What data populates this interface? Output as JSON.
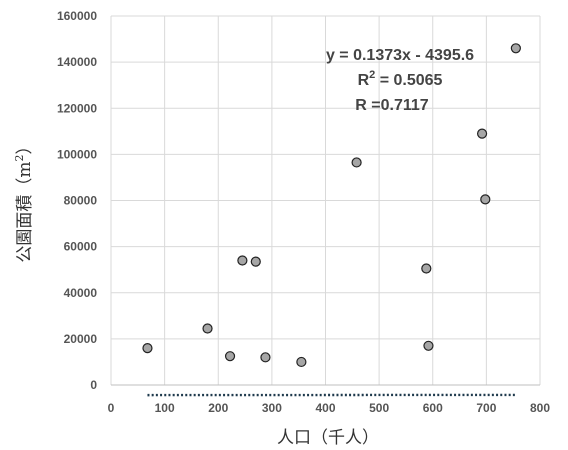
{
  "chart_data": {
    "type": "scatter",
    "xlabel": "人口（千人）",
    "ylabel_main": "公園面積（m",
    "ylabel_sup": "2",
    "ylabel_close": "）",
    "xlim": [
      0,
      800
    ],
    "ylim": [
      0,
      160000
    ],
    "x_ticks": [
      "0",
      "100",
      "200",
      "300",
      "400",
      "500",
      "600",
      "700",
      "800"
    ],
    "y_ticks": [
      "0",
      "20000",
      "40000",
      "60000",
      "80000",
      "100000",
      "120000",
      "140000",
      "160000"
    ],
    "grid": true,
    "points": [
      {
        "x": 68,
        "y": 16000
      },
      {
        "x": 180,
        "y": 24500
      },
      {
        "x": 222,
        "y": 12500
      },
      {
        "x": 245,
        "y": 54000
      },
      {
        "x": 270,
        "y": 53500
      },
      {
        "x": 288,
        "y": 12000
      },
      {
        "x": 355,
        "y": 10000
      },
      {
        "x": 458,
        "y": 96500
      },
      {
        "x": 588,
        "y": 50500
      },
      {
        "x": 592,
        "y": 17000
      },
      {
        "x": 692,
        "y": 109000
      },
      {
        "x": 698,
        "y": 80500
      },
      {
        "x": 755,
        "y": 146000
      }
    ],
    "trendline": {
      "slope": 0.1373,
      "intercept": -4395.6,
      "x_start": 68,
      "x_end": 755
    },
    "annotation": {
      "equation": "y = 0.1373x - 4395.6",
      "r2_prefix": "R",
      "r2_sup": "2",
      "r2_value": " = 0.5065",
      "r_text": "R  =0.7117"
    },
    "colors": {
      "marker_fill": "#a6a6a6",
      "marker_edge": "#222222",
      "trendline": "#1f3a4d"
    }
  }
}
